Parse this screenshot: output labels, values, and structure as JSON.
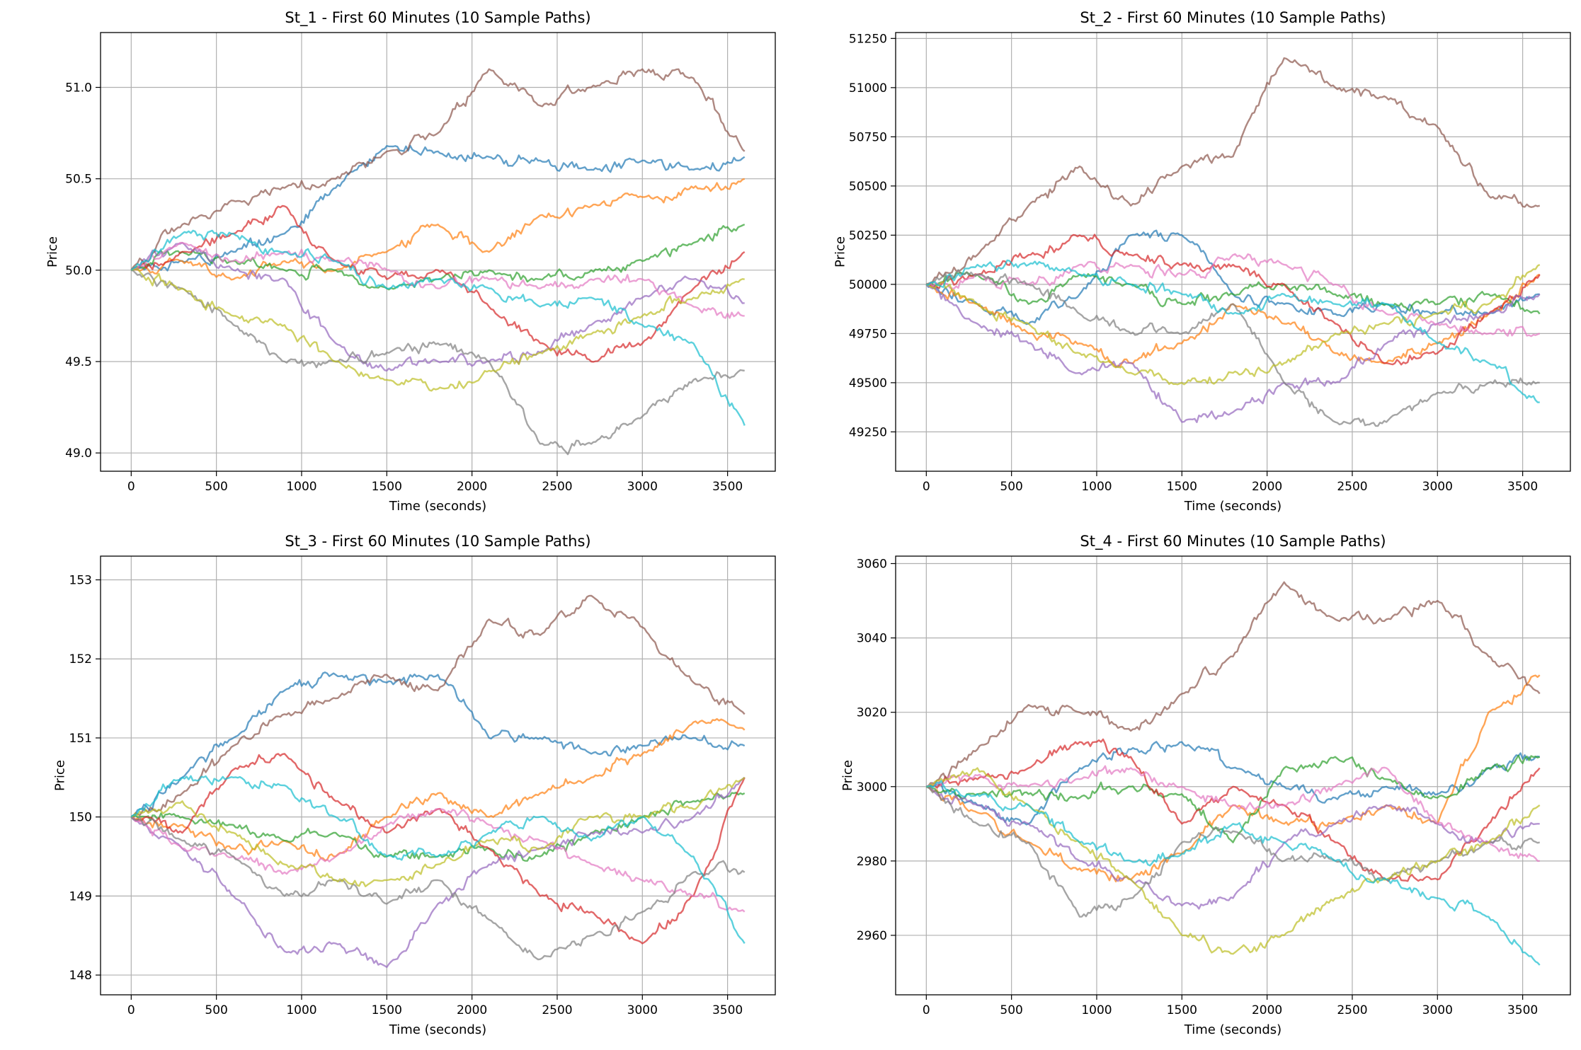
{
  "figure": {
    "line_colors": [
      "#1f77b4",
      "#ff7f0e",
      "#2ca02c",
      "#d62728",
      "#9467bd",
      "#8c564b",
      "#e377c2",
      "#7f7f7f",
      "#bcbd22",
      "#17becf"
    ],
    "grid": true,
    "line_alpha": 0.7
  },
  "chart_data": [
    {
      "type": "line",
      "title": "St_1 - First 60 Minutes (10 Sample Paths)",
      "xlabel": "Time (seconds)",
      "ylabel": "Price",
      "xlim": [
        -180,
        3780
      ],
      "ylim": [
        48.9,
        51.3
      ],
      "xticks": [
        0,
        500,
        1000,
        1500,
        2000,
        2500,
        3000,
        3500
      ],
      "xtick_labels": [
        "0",
        "500",
        "1000",
        "1500",
        "2000",
        "2500",
        "3000",
        "3500"
      ],
      "yticks": [
        49.0,
        49.5,
        50.0,
        50.5,
        51.0
      ],
      "ytick_labels": [
        "49.0",
        "49.5",
        "50.0",
        "50.5",
        "51.0"
      ],
      "x": [
        0,
        300,
        600,
        900,
        1200,
        1500,
        1800,
        2100,
        2400,
        2700,
        3000,
        3300,
        3600
      ],
      "series": [
        {
          "values": [
            50.0,
            50.05,
            50.1,
            50.2,
            50.45,
            50.68,
            50.65,
            50.62,
            50.6,
            50.55,
            50.6,
            50.55,
            50.62
          ]
        },
        {
          "values": [
            50.0,
            50.05,
            49.95,
            50.05,
            50.0,
            50.1,
            50.25,
            50.1,
            50.3,
            50.35,
            50.4,
            50.45,
            50.5
          ]
        },
        {
          "values": [
            50.0,
            50.1,
            50.05,
            50.0,
            50.0,
            49.9,
            49.95,
            50.0,
            49.95,
            50.0,
            50.05,
            50.15,
            50.25
          ]
        },
        {
          "values": [
            50.0,
            50.1,
            50.2,
            50.35,
            50.05,
            49.95,
            50.0,
            49.8,
            49.6,
            49.5,
            49.6,
            49.9,
            50.1
          ]
        },
        {
          "values": [
            50.0,
            50.15,
            50.0,
            49.95,
            49.6,
            49.45,
            49.5,
            49.5,
            49.55,
            49.7,
            49.85,
            49.95,
            49.82
          ]
        },
        {
          "values": [
            50.0,
            50.25,
            50.38,
            50.45,
            50.5,
            50.65,
            50.75,
            51.1,
            50.9,
            51.0,
            51.1,
            51.05,
            50.65
          ]
        },
        {
          "values": [
            50.0,
            50.15,
            50.05,
            50.1,
            50.05,
            50.0,
            49.9,
            49.95,
            49.9,
            49.95,
            49.95,
            49.8,
            49.75
          ]
        },
        {
          "values": [
            50.0,
            49.9,
            49.7,
            49.5,
            49.5,
            49.55,
            49.6,
            49.5,
            49.05,
            49.05,
            49.2,
            49.4,
            49.45
          ]
        },
        {
          "values": [
            50.0,
            49.9,
            49.75,
            49.7,
            49.5,
            49.4,
            49.35,
            49.45,
            49.55,
            49.65,
            49.75,
            49.85,
            49.95
          ]
        },
        {
          "values": [
            50.0,
            50.2,
            50.2,
            50.1,
            50.05,
            49.9,
            49.95,
            49.9,
            49.8,
            49.85,
            49.7,
            49.6,
            49.15
          ]
        }
      ]
    },
    {
      "type": "line",
      "title": "St_2 - First 60 Minutes (10 Sample Paths)",
      "xlabel": "Time (seconds)",
      "ylabel": "Price",
      "xlim": [
        -180,
        3780
      ],
      "ylim": [
        49050,
        51280
      ],
      "xticks": [
        0,
        500,
        1000,
        1500,
        2000,
        2500,
        3000,
        3500
      ],
      "xtick_labels": [
        "0",
        "500",
        "1000",
        "1500",
        "2000",
        "2500",
        "3000",
        "3500"
      ],
      "yticks": [
        49250,
        49500,
        49750,
        50000,
        50250,
        50500,
        50750,
        51000,
        51250
      ],
      "ytick_labels": [
        "49250",
        "49500",
        "49750",
        "50000",
        "50250",
        "50500",
        "50750",
        "51000",
        "51250"
      ],
      "x": [
        0,
        300,
        600,
        900,
        1200,
        1500,
        1800,
        2100,
        2400,
        2700,
        3000,
        3300,
        3600
      ],
      "series": [
        {
          "values": [
            50000,
            49900,
            49800,
            49950,
            50250,
            50250,
            49950,
            49900,
            49850,
            49900,
            49850,
            49850,
            49950
          ]
        },
        {
          "values": [
            50000,
            49900,
            49750,
            49700,
            49600,
            49700,
            49900,
            49800,
            49650,
            49600,
            49700,
            49850,
            50050
          ]
        },
        {
          "values": [
            50000,
            50050,
            49900,
            50050,
            50000,
            49900,
            49950,
            50000,
            49950,
            49900,
            49900,
            49950,
            49850
          ]
        },
        {
          "values": [
            50000,
            50050,
            50150,
            50250,
            50150,
            50100,
            50100,
            50000,
            49800,
            49600,
            49650,
            49850,
            50050
          ]
        },
        {
          "values": [
            50000,
            49800,
            49700,
            49550,
            49600,
            49300,
            49350,
            49500,
            49500,
            49700,
            49800,
            49850,
            49950
          ]
        },
        {
          "values": [
            50000,
            50150,
            50400,
            50600,
            50400,
            50600,
            50650,
            51150,
            51000,
            50950,
            50800,
            50450,
            50400
          ]
        },
        {
          "values": [
            50000,
            50050,
            50000,
            50100,
            50100,
            50050,
            50150,
            50100,
            50000,
            49850,
            49800,
            49750,
            49750
          ]
        },
        {
          "values": [
            50000,
            50050,
            50000,
            49850,
            49750,
            49750,
            49900,
            49500,
            49300,
            49300,
            49450,
            49500,
            49500
          ]
        },
        {
          "values": [
            50000,
            49900,
            49800,
            49650,
            49550,
            49500,
            49550,
            49600,
            49750,
            49800,
            49850,
            49900,
            50100
          ]
        },
        {
          "values": [
            50000,
            50100,
            50100,
            50050,
            50000,
            49950,
            49850,
            49950,
            49900,
            49900,
            49700,
            49600,
            49400
          ]
        }
      ]
    },
    {
      "type": "line",
      "title": "St_3 - First 60 Minutes (10 Sample Paths)",
      "xlabel": "Time (seconds)",
      "ylabel": "Price",
      "xlim": [
        -180,
        3780
      ],
      "ylim": [
        147.75,
        153.3
      ],
      "xticks": [
        0,
        500,
        1000,
        1500,
        2000,
        2500,
        3000,
        3500
      ],
      "xtick_labels": [
        "0",
        "500",
        "1000",
        "1500",
        "2000",
        "2500",
        "3000",
        "3500"
      ],
      "yticks": [
        148,
        149,
        150,
        151,
        152,
        153
      ],
      "ytick_labels": [
        "148",
        "149",
        "150",
        "151",
        "152",
        "153"
      ],
      "x": [
        0,
        300,
        600,
        900,
        1200,
        1500,
        1800,
        2100,
        2400,
        2700,
        3000,
        3300,
        3600
      ],
      "series": [
        {
          "values": [
            150.0,
            150.5,
            151.0,
            151.6,
            151.8,
            151.7,
            151.8,
            151.0,
            151.0,
            150.8,
            150.9,
            151.0,
            150.9
          ]
        },
        {
          "values": [
            150.0,
            149.9,
            149.6,
            149.7,
            149.5,
            150.0,
            150.3,
            150.0,
            150.3,
            150.5,
            150.8,
            151.2,
            151.1
          ]
        },
        {
          "values": [
            150.0,
            150.0,
            149.9,
            149.7,
            149.8,
            149.5,
            149.5,
            149.6,
            149.5,
            149.8,
            150.0,
            150.2,
            150.3
          ]
        },
        {
          "values": [
            150.0,
            149.8,
            150.6,
            150.8,
            150.2,
            149.8,
            150.1,
            149.6,
            149.0,
            148.8,
            148.4,
            149.0,
            150.5
          ]
        },
        {
          "values": [
            150.0,
            149.6,
            149.0,
            148.3,
            148.4,
            148.1,
            148.9,
            149.4,
            149.6,
            149.8,
            149.8,
            150.0,
            150.5
          ]
        },
        {
          "values": [
            150.0,
            150.3,
            150.9,
            151.3,
            151.5,
            151.8,
            151.6,
            152.5,
            152.3,
            152.8,
            152.4,
            151.7,
            151.3
          ]
        },
        {
          "values": [
            150.0,
            149.6,
            149.5,
            149.3,
            149.5,
            149.9,
            150.1,
            149.9,
            149.7,
            149.4,
            149.2,
            149.0,
            148.8
          ]
        },
        {
          "values": [
            150.0,
            149.7,
            149.5,
            149.0,
            149.2,
            148.9,
            149.2,
            148.7,
            148.2,
            148.5,
            148.8,
            149.3,
            149.3
          ]
        },
        {
          "values": [
            150.0,
            150.2,
            149.8,
            149.4,
            149.2,
            149.2,
            149.4,
            149.7,
            149.6,
            150.0,
            150.0,
            150.1,
            150.5
          ]
        },
        {
          "values": [
            150.0,
            150.5,
            150.5,
            150.4,
            150.0,
            149.5,
            149.5,
            149.8,
            150.0,
            149.7,
            150.0,
            149.5,
            148.4
          ]
        }
      ]
    },
    {
      "type": "line",
      "title": "St_4 - First 60 Minutes (10 Sample Paths)",
      "xlabel": "Time (seconds)",
      "ylabel": "Price",
      "xlim": [
        -180,
        3780
      ],
      "ylim": [
        2944,
        3062
      ],
      "xticks": [
        0,
        500,
        1000,
        1500,
        2000,
        2500,
        3000,
        3500
      ],
      "xtick_labels": [
        "0",
        "500",
        "1000",
        "1500",
        "2000",
        "2500",
        "3000",
        "3500"
      ],
      "yticks": [
        2960,
        2980,
        3000,
        3020,
        3040,
        3060
      ],
      "ytick_labels": [
        "2960",
        "2980",
        "3000",
        "3020",
        "3040",
        "3060"
      ],
      "x": [
        0,
        300,
        600,
        900,
        1200,
        1500,
        1800,
        2100,
        2400,
        2700,
        3000,
        3300,
        3600
      ],
      "series": [
        {
          "values": [
            3000,
            2995,
            2990,
            3005,
            3010,
            3012,
            3005,
            3000,
            2997,
            3000,
            2998,
            3005,
            3008
          ]
        },
        {
          "values": [
            3000,
            2993,
            2985,
            2978,
            2975,
            2982,
            2995,
            2990,
            2990,
            2995,
            2990,
            3020,
            3030
          ]
        },
        {
          "values": [
            3000,
            2998,
            2998,
            2997,
            3000,
            2998,
            2985,
            3005,
            3008,
            3002,
            2997,
            3005,
            3008
          ]
        },
        {
          "values": [
            3000,
            3002,
            3005,
            3012,
            3008,
            2990,
            3000,
            2995,
            2985,
            2975,
            2975,
            2990,
            3005
          ]
        },
        {
          "values": [
            3000,
            2995,
            2990,
            2980,
            2975,
            2968,
            2970,
            2985,
            2990,
            2995,
            2990,
            2985,
            2990
          ]
        },
        {
          "values": [
            3000,
            3010,
            3022,
            3020,
            3015,
            3025,
            3035,
            3055,
            3045,
            3045,
            3050,
            3035,
            3025
          ]
        },
        {
          "values": [
            3000,
            3003,
            3000,
            3002,
            3005,
            3000,
            2995,
            2995,
            3000,
            3005,
            2990,
            2985,
            2980
          ]
        },
        {
          "values": [
            3000,
            2990,
            2985,
            2965,
            2970,
            2985,
            2988,
            2980,
            2980,
            2975,
            2980,
            2985,
            2985
          ]
        },
        {
          "values": [
            3000,
            3005,
            2995,
            2985,
            2975,
            2960,
            2955,
            2960,
            2970,
            2975,
            2980,
            2985,
            2995
          ]
        },
        {
          "values": [
            3000,
            2998,
            2995,
            2985,
            2980,
            2982,
            2990,
            2985,
            2980,
            2975,
            2970,
            2965,
            2952
          ]
        }
      ]
    }
  ]
}
